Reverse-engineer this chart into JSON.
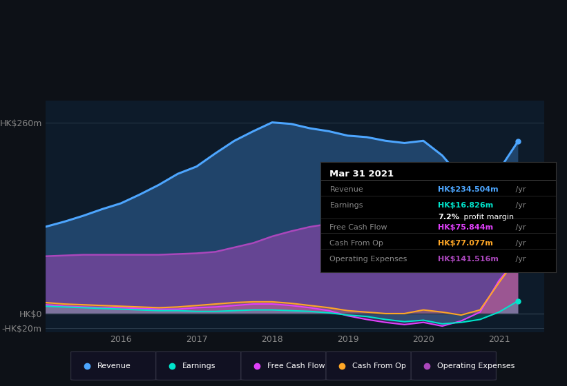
{
  "bg_color": "#0d1117",
  "plot_bg_color": "#0d1b2a",
  "ylim": [
    -25,
    290
  ],
  "xlim": [
    2015.0,
    2021.6
  ],
  "ytick_labels": [
    "HK$260m",
    "HK$0",
    "-HK$20m"
  ],
  "ytick_values": [
    260,
    0,
    -20
  ],
  "xtick_labels": [
    "2016",
    "2017",
    "2018",
    "2019",
    "2020",
    "2021"
  ],
  "xtick_positions": [
    2016,
    2017,
    2018,
    2019,
    2020,
    2021
  ],
  "tooltip": {
    "date": "Mar 31 2021",
    "rows": [
      {
        "label": "Revenue",
        "value": "HK$234.504m",
        "suffix": " /yr",
        "value_color": "#4da6ff",
        "label_color": "#888888"
      },
      {
        "label": "Earnings",
        "value": "HK$16.826m",
        "suffix": " /yr",
        "value_color": "#00e5cc",
        "label_color": "#888888"
      },
      {
        "label": "",
        "value": "7.2%",
        "suffix": " profit margin",
        "value_color": "#ffffff",
        "label_color": "#888888"
      },
      {
        "label": "Free Cash Flow",
        "value": "HK$75.844m",
        "suffix": " /yr",
        "value_color": "#e040fb",
        "label_color": "#888888"
      },
      {
        "label": "Cash From Op",
        "value": "HK$77.077m",
        "suffix": " /yr",
        "value_color": "#ffa726",
        "label_color": "#888888"
      },
      {
        "label": "Operating Expenses",
        "value": "HK$141.516m",
        "suffix": " /yr",
        "value_color": "#ab47bc",
        "label_color": "#888888"
      }
    ]
  },
  "series": {
    "x": [
      2015.0,
      2015.25,
      2015.5,
      2015.75,
      2016.0,
      2016.25,
      2016.5,
      2016.75,
      2017.0,
      2017.25,
      2017.5,
      2017.75,
      2018.0,
      2018.25,
      2018.5,
      2018.75,
      2019.0,
      2019.25,
      2019.5,
      2019.75,
      2020.0,
      2020.25,
      2020.5,
      2020.75,
      2021.0,
      2021.25
    ],
    "revenue": [
      118,
      125,
      133,
      142,
      150,
      162,
      175,
      190,
      200,
      218,
      235,
      248,
      260,
      258,
      252,
      248,
      242,
      240,
      235,
      232,
      235,
      215,
      185,
      168,
      195,
      234
    ],
    "earnings": [
      10,
      9,
      8,
      7,
      6,
      5,
      4,
      4,
      3,
      3,
      4,
      5,
      5,
      4,
      3,
      1,
      -2,
      -4,
      -8,
      -11,
      -9,
      -14,
      -12,
      -8,
      2,
      17
    ],
    "fcf": [
      12,
      10,
      9,
      8,
      8,
      7,
      6,
      6,
      8,
      9,
      11,
      13,
      13,
      11,
      8,
      4,
      -3,
      -8,
      -12,
      -15,
      -12,
      -17,
      -10,
      2,
      45,
      76
    ],
    "cash_op": [
      15,
      13,
      12,
      11,
      10,
      9,
      8,
      9,
      11,
      13,
      15,
      16,
      16,
      14,
      11,
      8,
      4,
      2,
      0,
      0,
      5,
      2,
      -2,
      5,
      42,
      77
    ],
    "opex": [
      78,
      79,
      80,
      80,
      80,
      80,
      80,
      81,
      82,
      84,
      90,
      96,
      105,
      112,
      118,
      122,
      126,
      130,
      132,
      130,
      127,
      122,
      115,
      108,
      125,
      142
    ]
  },
  "series_colors": {
    "revenue": "#4da6ff",
    "earnings": "#00e5cc",
    "fcf": "#e040fb",
    "cash_op": "#ffa726",
    "opex": "#ab47bc"
  },
  "legend": [
    {
      "label": "Revenue",
      "color": "#4da6ff"
    },
    {
      "label": "Earnings",
      "color": "#00e5cc"
    },
    {
      "label": "Free Cash Flow",
      "color": "#e040fb"
    },
    {
      "label": "Cash From Op",
      "color": "#ffa726"
    },
    {
      "label": "Operating Expenses",
      "color": "#ab47bc"
    }
  ]
}
